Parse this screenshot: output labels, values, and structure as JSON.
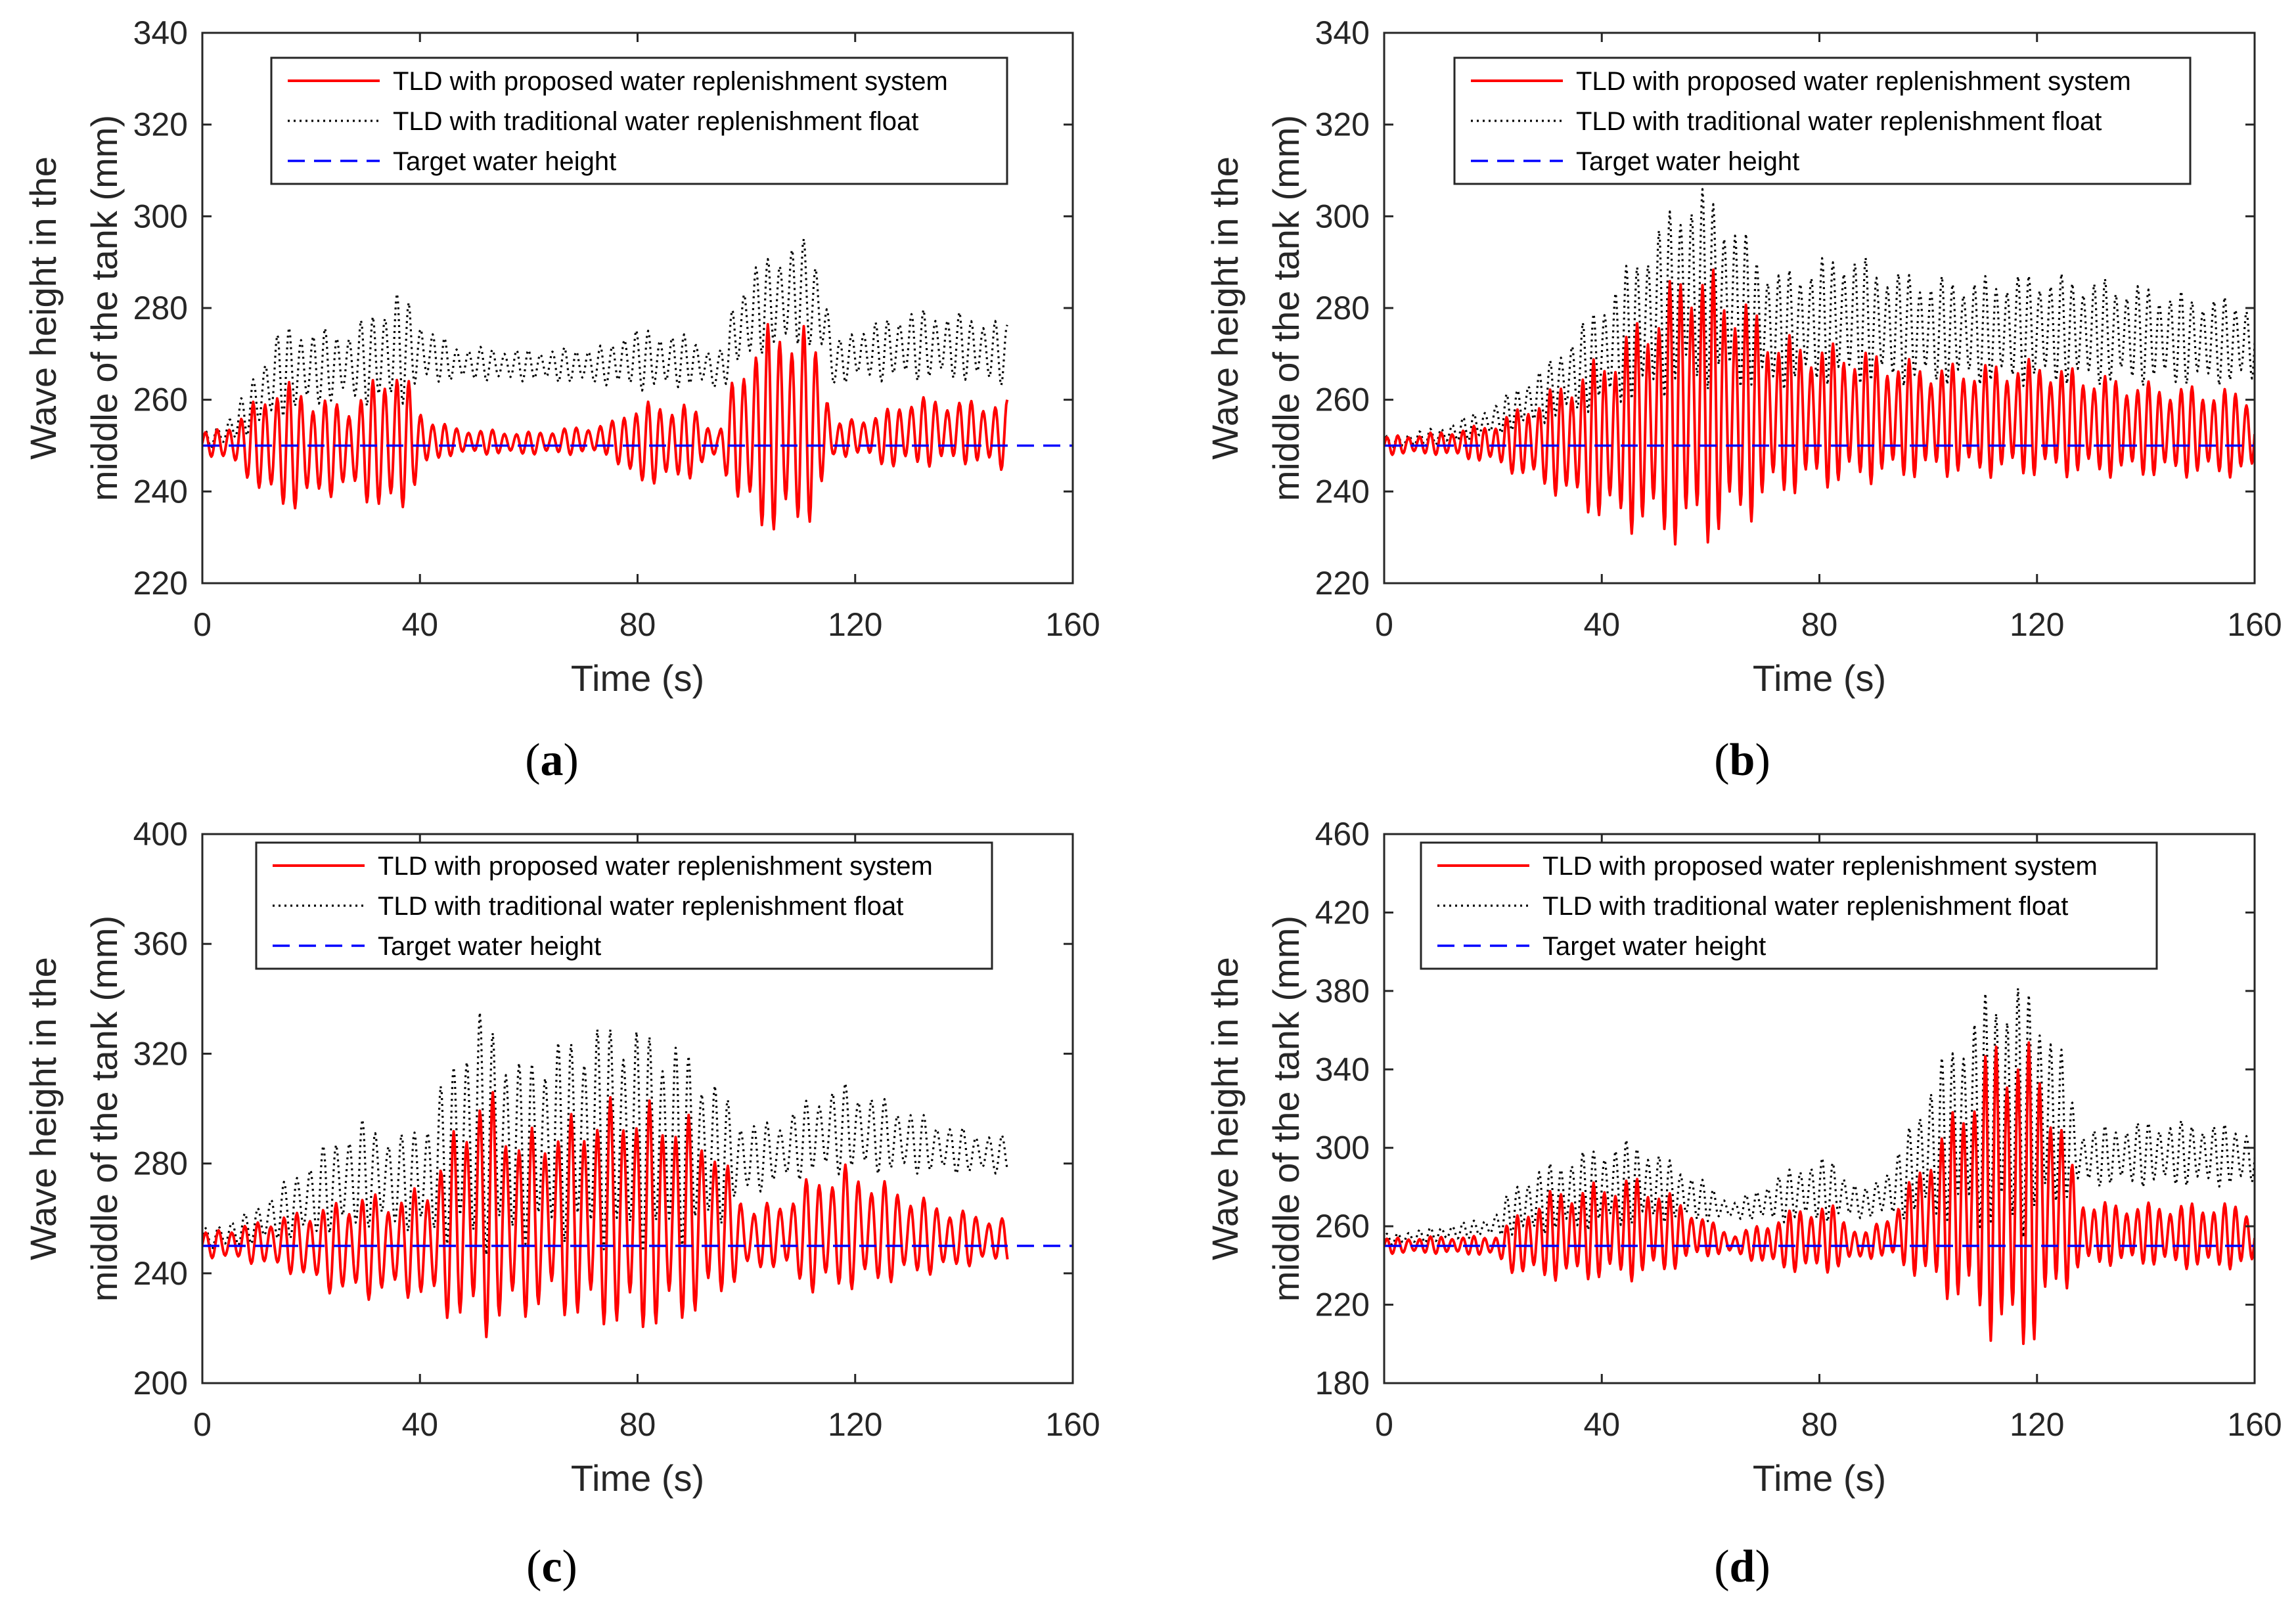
{
  "colors": {
    "proposed": "#ff0000",
    "traditional": "#000000",
    "target": "#0000ff",
    "axis": "#262626"
  },
  "chart_data": [
    {
      "type": "line",
      "panel_label": "a",
      "xlabel": "Time (s)",
      "ylabel_line1": "Wave height in the",
      "ylabel_line2": "middle of the tank (mm)",
      "xlim": [
        0,
        160
      ],
      "ylim": [
        220,
        340
      ],
      "xticks": [
        "0",
        "40",
        "80",
        "120",
        "160"
      ],
      "yticks": [
        "220",
        "240",
        "260",
        "280",
        "300",
        "320",
        "340"
      ],
      "grid": false,
      "legend_position": "top",
      "legend": [
        "TLD with proposed water replenishment system",
        "TLD with traditional water replenishment float",
        "Target water height"
      ],
      "series": [
        {
          "name": "TLD with proposed water replenishment system",
          "style": "solid",
          "period": 2.2,
          "x_end": 148,
          "envelope": {
            "t": [
              0,
              4,
              8,
              14,
              20,
              26,
              32,
              36,
              40,
              46,
              60,
              75,
              78,
              85,
              90,
              95,
              98,
              102,
              106,
              110,
              114,
              116,
              120,
              126,
              130,
              140,
              148
            ],
            "lo": [
              248,
              247,
              243,
              235,
              237,
              240,
              236,
              232,
              244,
              248,
              248,
              248,
              242,
              241,
              243,
              248,
              237,
              231,
              230,
              230,
              238,
              247,
              248,
              245,
              245,
              246,
              244
            ],
            "hi": [
              253,
              254,
              258,
              265,
              262,
              259,
              265,
              270,
              258,
              254,
              253,
              255,
              259,
              260,
              259,
              253,
              267,
              275,
              278,
              278,
              270,
              255,
              256,
              258,
              261,
              260,
              260
            ]
          }
        },
        {
          "name": "TLD with traditional water replenishment float",
          "style": "dotted",
          "period": 2.2,
          "x_end": 148,
          "envelope": {
            "t": [
              0,
              4,
              8,
              14,
              20,
              26,
              32,
              36,
              40,
              46,
              60,
              75,
              78,
              85,
              90,
              95,
              98,
              102,
              106,
              110,
              114,
              116,
              120,
              126,
              130,
              140,
              148
            ],
            "lo": [
              249,
              250,
              252,
              256,
              258,
              260,
              258,
              258,
              263,
              264,
              264,
              263,
              262,
              262,
              263,
              262,
              265,
              270,
              270,
              272,
              268,
              263,
              264,
              264,
              264,
              264,
              263
            ],
            "hi": [
              253,
              255,
              262,
              276,
              276,
              275,
              280,
              285,
              278,
              272,
              271,
              272,
              276,
              275,
              274,
              270,
              284,
              290,
              293,
              296,
              290,
              272,
              276,
              278,
              280,
              279,
              277
            ]
          }
        },
        {
          "name": "Target water height",
          "style": "dashed",
          "constant": 250,
          "x_range": [
            0,
            160
          ]
        }
      ]
    },
    {
      "type": "line",
      "panel_label": "b",
      "xlabel": "Time (s)",
      "ylabel_line1": "Wave height in the",
      "ylabel_line2": "middle of the tank (mm)",
      "xlim": [
        0,
        160
      ],
      "ylim": [
        220,
        340
      ],
      "xticks": [
        "0",
        "40",
        "80",
        "120",
        "160"
      ],
      "yticks": [
        "220",
        "240",
        "260",
        "280",
        "300",
        "320",
        "340"
      ],
      "grid": false,
      "legend_position": "top",
      "legend": [
        "TLD with proposed water replenishment system",
        "TLD with traditional water replenishment float",
        "Target water height"
      ],
      "series": [
        {
          "name": "TLD with proposed water replenishment system",
          "style": "solid",
          "period": 2.0,
          "x_end": 160,
          "envelope": {
            "t": [
              0,
              10,
              20,
              30,
              40,
              50,
              56,
              60,
              66,
              72,
              78,
              85,
              92,
              100,
              110,
              120,
              130,
              140,
              150,
              160
            ],
            "lo": [
              248,
              248,
              246,
              240,
              233,
              229,
              227,
              228,
              232,
              238,
              240,
              241,
              242,
              243,
              243,
              243,
              243,
              243,
              243,
              243
            ],
            "hi": [
              252,
              253,
              255,
              262,
              270,
              282,
              292,
              289,
              283,
              275,
              273,
              272,
              270,
              268,
              268,
              269,
              266,
              264,
              263,
              262
            ]
          }
        },
        {
          "name": "TLD with traditional water replenishment float",
          "style": "dotted",
          "period": 2.0,
          "x_end": 160,
          "envelope": {
            "t": [
              0,
              10,
              20,
              30,
              40,
              50,
              56,
              60,
              66,
              72,
              78,
              85,
              92,
              100,
              110,
              120,
              130,
              140,
              150,
              160
            ],
            "lo": [
              249,
              250,
              252,
              255,
              258,
              260,
              262,
              262,
              262,
              262,
              263,
              263,
              263,
              263,
              263,
              263,
              263,
              263,
              263,
              263
            ],
            "hi": [
              252,
              254,
              259,
              268,
              282,
              298,
              307,
              306,
              297,
              288,
              290,
              293,
              289,
              287,
              287,
              288,
              287,
              285,
              283,
              282
            ]
          }
        },
        {
          "name": "Target water height",
          "style": "dashed",
          "constant": 250,
          "x_range": [
            0,
            160
          ]
        }
      ]
    },
    {
      "type": "line",
      "panel_label": "c",
      "xlabel": "Time (s)",
      "ylabel_line1": "Wave height in the",
      "ylabel_line2": "middle of the tank (mm)",
      "xlim": [
        0,
        160
      ],
      "ylim": [
        200,
        400
      ],
      "xticks": [
        "0",
        "40",
        "80",
        "120",
        "160"
      ],
      "yticks": [
        "200",
        "240",
        "280",
        "320",
        "360",
        "400"
      ],
      "grid": false,
      "legend_position": "top",
      "legend": [
        "TLD with proposed water replenishment system",
        "TLD with traditional water replenishment float",
        "Target water height"
      ],
      "series": [
        {
          "name": "TLD with proposed water replenishment system",
          "style": "solid",
          "period": 2.4,
          "x_end": 148,
          "envelope": {
            "t": [
              0,
              8,
              16,
              24,
              30,
              36,
              42,
              48,
              52,
              58,
              64,
              70,
              76,
              82,
              88,
              94,
              100,
              106,
              112,
              118,
              124,
              130,
              136,
              142,
              148
            ],
            "lo": [
              246,
              244,
              240,
              232,
              230,
              232,
              228,
              218,
              215,
              222,
              225,
              220,
              218,
              217,
              220,
              228,
              240,
              242,
              232,
              233,
              235,
              238,
              240,
              243,
              244
            ],
            "hi": [
              255,
              258,
              262,
              266,
              270,
              268,
              275,
              300,
              311,
              292,
              295,
              300,
              305,
              303,
              300,
              290,
              265,
              266,
              276,
              280,
              275,
              270,
              265,
              262,
              260
            ]
          }
        },
        {
          "name": "TLD with traditional water replenishment float",
          "style": "dotted",
          "period": 2.4,
          "x_end": 148,
          "envelope": {
            "t": [
              0,
              8,
              16,
              24,
              30,
              36,
              42,
              48,
              52,
              58,
              64,
              70,
              76,
              82,
              88,
              94,
              100,
              106,
              112,
              118,
              124,
              130,
              136,
              142,
              148
            ],
            "lo": [
              248,
              250,
              252,
              254,
              256,
              256,
              252,
              248,
              246,
              250,
              252,
              250,
              248,
              248,
              250,
              255,
              268,
              272,
              275,
              276,
              276,
              276,
              276,
              276,
              276
            ],
            "hi": [
              256,
              262,
              275,
              290,
              297,
              290,
              300,
              330,
              339,
              318,
              325,
              330,
              334,
              330,
              325,
              312,
              295,
              296,
              305,
              310,
              305,
              300,
              295,
              292,
              290
            ]
          }
        },
        {
          "name": "Target water height",
          "style": "dashed",
          "constant": 250,
          "x_range": [
            0,
            160
          ]
        }
      ]
    },
    {
      "type": "line",
      "panel_label": "d",
      "xlabel": "Time (s)",
      "ylabel_line1": "Wave height in the",
      "ylabel_line2": "middle of the tank (mm)",
      "xlim": [
        0,
        160
      ],
      "ylim": [
        180,
        460
      ],
      "xticks": [
        "0",
        "40",
        "80",
        "120",
        "160"
      ],
      "yticks": [
        "180",
        "220",
        "260",
        "300",
        "340",
        "380",
        "420",
        "460"
      ],
      "grid": false,
      "legend_position": "top",
      "legend": [
        "TLD with proposed water replenishment system",
        "TLD with traditional water replenishment float",
        "Target water height"
      ],
      "series": [
        {
          "name": "TLD with proposed water replenishment system",
          "style": "solid",
          "period": 2.0,
          "x_end": 160,
          "envelope": {
            "t": [
              0,
              10,
              20,
              24,
              30,
              38,
              46,
              52,
              58,
              64,
              70,
              76,
              82,
              88,
              94,
              100,
              106,
              112,
              116,
              120,
              124,
              128,
              134,
              140,
              148,
              156,
              160
            ],
            "lo": [
              246,
              246,
              245,
              235,
              232,
              232,
              232,
              236,
              244,
              246,
              240,
              236,
              236,
              244,
              242,
              228,
              218,
              200,
              190,
              200,
              222,
              238,
              240,
              240,
              238,
              238,
              238
            ],
            "hi": [
              254,
              255,
              255,
              265,
              278,
              282,
              286,
              278,
              266,
              256,
              262,
              270,
              272,
              256,
              270,
              300,
              325,
              358,
              360,
              350,
              320,
              275,
              272,
              272,
              272,
              272,
              270
            ]
          }
        },
        {
          "name": "TLD with traditional water replenishment float",
          "style": "dotted",
          "period": 2.0,
          "x_end": 160,
          "envelope": {
            "t": [
              0,
              10,
              20,
              24,
              30,
              38,
              46,
              52,
              58,
              64,
              70,
              76,
              82,
              88,
              94,
              100,
              106,
              112,
              116,
              120,
              124,
              128,
              134,
              140,
              148,
              156,
              160
            ],
            "lo": [
              250,
              252,
              255,
              255,
              256,
              258,
              260,
              262,
              262,
              264,
              262,
              262,
              262,
              264,
              264,
              262,
              262,
              255,
              252,
              258,
              270,
              280,
              280,
              280,
              280,
              280,
              280
            ],
            "hi": [
              256,
              260,
              265,
              282,
              292,
              300,
              305,
              295,
              285,
              272,
              282,
              292,
              296,
              278,
              295,
              335,
              362,
              385,
              386,
              380,
              356,
              310,
              312,
              314,
              314,
              312,
              310
            ]
          }
        },
        {
          "name": "Target water height",
          "style": "dashed",
          "constant": 250,
          "x_range": [
            0,
            160
          ]
        }
      ]
    }
  ]
}
